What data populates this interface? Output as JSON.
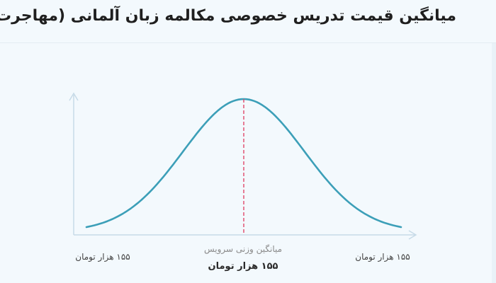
{
  "chart_data": {
    "type": "line",
    "title": "میانگین قیمت تدریس خصوصی مکالمه زبان آلمانی (مهاجرت)",
    "series": [
      {
        "distribution": "normal",
        "mean": 0,
        "std": 1,
        "x_range": [
          -2.6,
          2.6
        ],
        "color": "#3c9fb8"
      }
    ],
    "mean_marker": {
      "x": 0,
      "color": "#e0476a",
      "style": "dashed"
    },
    "labels": {
      "min": "۱۵۵ هزار تومان",
      "max": "۱۵۵ هزار تومان",
      "mean_caption": "میانگین وزنی سرویس",
      "mean_value": "۱۵۵ هزار تومان"
    },
    "axis_color": "#c7dbe8",
    "grid": false,
    "legend": "none"
  }
}
